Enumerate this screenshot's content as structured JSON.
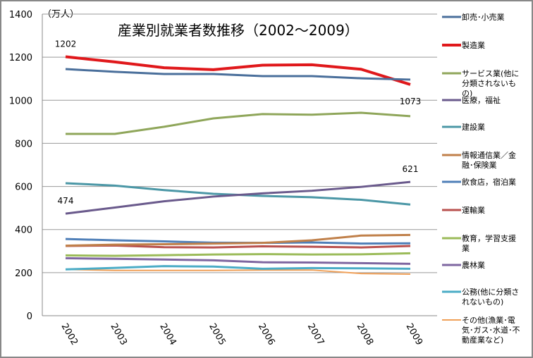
{
  "chart_data": {
    "type": "line",
    "title": "産業別就業者数推移（2002〜2009）",
    "unit": "（万人）",
    "x": [
      "2002",
      "2003",
      "2004",
      "2005",
      "2006",
      "2007",
      "2008",
      "2009"
    ],
    "ylim": [
      0,
      1400
    ],
    "yticks": [
      0,
      200,
      400,
      600,
      800,
      1000,
      1200,
      1400
    ],
    "grid": true,
    "legend": "right",
    "series": [
      {
        "name": "卸売･小売業",
        "color": "#4a6f9b",
        "width": 3,
        "values": [
          1145,
          1132,
          1122,
          1122,
          1112,
          1112,
          1102,
          1096
        ]
      },
      {
        "name": "製造業",
        "color": "#e0181b",
        "width": 4,
        "values": [
          1202,
          1178,
          1151,
          1142,
          1163,
          1165,
          1144,
          1073
        ]
      },
      {
        "name": "サービス業(他に分類されないもの)",
        "color": "#8fa65a",
        "width": 3,
        "values": [
          844,
          844,
          877,
          916,
          936,
          933,
          942,
          926
        ]
      },
      {
        "name": "医療，福祉",
        "color": "#6a5a8c",
        "width": 3,
        "values": [
          474,
          502,
          531,
          553,
          568,
          580,
          598,
          621
        ]
      },
      {
        "name": "建設業",
        "color": "#4b97a6",
        "width": 3,
        "values": [
          615,
          604,
          583,
          566,
          556,
          550,
          538,
          516
        ]
      },
      {
        "name": "情報通信業／金融･保険業",
        "color": "#c0804a",
        "width": 3,
        "values": [
          325,
          330,
          332,
          335,
          338,
          350,
          372,
          375
        ]
      },
      {
        "name": "飲食店，宿泊業",
        "color": "#4f7fb8",
        "width": 3,
        "values": [
          356,
          350,
          345,
          339,
          338,
          340,
          335,
          336
        ]
      },
      {
        "name": "運輸業",
        "color": "#b9504e",
        "width": 3,
        "values": [
          324,
          326,
          318,
          317,
          322,
          320,
          317,
          324
        ]
      },
      {
        "name": "教育，学習支援業",
        "color": "#9bbb59",
        "width": 3,
        "values": [
          280,
          278,
          281,
          284,
          286,
          284,
          285,
          290
        ]
      },
      {
        "name": "農林業",
        "color": "#7e66a0",
        "width": 3,
        "values": [
          267,
          264,
          261,
          257,
          248,
          247,
          244,
          241
        ]
      },
      {
        "name": "公務(他に分類されないもの)",
        "color": "#4bacc6",
        "width": 3,
        "values": [
          215,
          222,
          230,
          228,
          218,
          221,
          220,
          218
        ]
      },
      {
        "name": "その他(漁業･電気･ガス･水道･不動産業など)",
        "color": "#f0a058",
        "width": 2,
        "values": [
          215,
          210,
          210,
          210,
          212,
          212,
          196,
          193
        ]
      }
    ],
    "data_labels": [
      {
        "series": 1,
        "index": 0,
        "text": "1202"
      },
      {
        "series": 3,
        "index": 0,
        "text": "474"
      },
      {
        "series": 3,
        "index": 7,
        "text": "621"
      },
      {
        "series": 1,
        "index": 7,
        "text": "1073"
      }
    ]
  }
}
